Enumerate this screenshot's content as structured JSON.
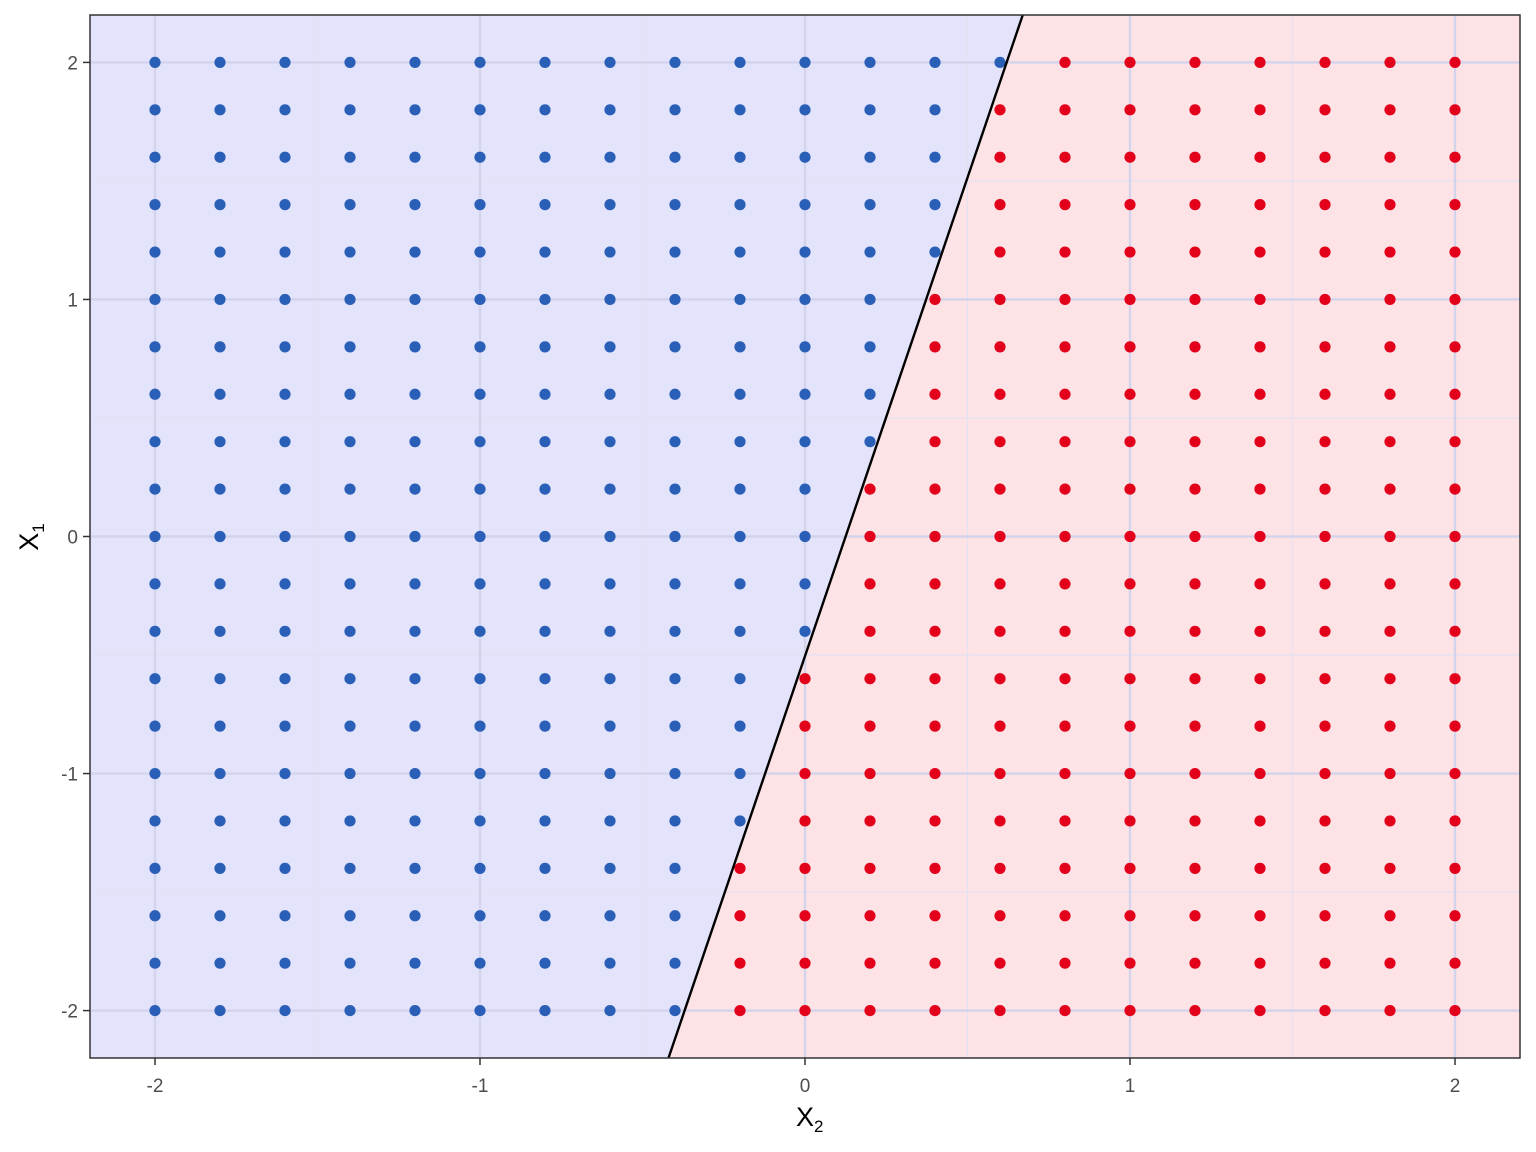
{
  "chart_data": {
    "type": "scatter",
    "title": "",
    "xlabel": "X",
    "xlabel_subscript": "2",
    "ylabel": "X",
    "ylabel_subscript": "1",
    "xlim": [
      -2.2,
      2.2
    ],
    "ylim": [
      -2.2,
      2.2
    ],
    "x_ticks": [
      -2,
      -1,
      0,
      1,
      2
    ],
    "y_ticks": [
      -2,
      -1,
      0,
      1,
      2
    ],
    "x_tick_labels": [
      "-2",
      "-1",
      "0",
      "1",
      "2"
    ],
    "y_tick_labels": [
      "-2",
      "-1",
      "0",
      "1",
      "2"
    ],
    "grid": true,
    "legend": "none",
    "grid_points": {
      "x_values": [
        -2,
        -1.8,
        -1.6,
        -1.4,
        -1.2,
        -1,
        -0.8,
        -0.6,
        -0.4,
        -0.2,
        0,
        0.2,
        0.4,
        0.6,
        0.8,
        1,
        1.2,
        1.4,
        1.6,
        1.8,
        2
      ],
      "y_values": [
        -2,
        -1.8,
        -1.6,
        -1.4,
        -1.2,
        -1,
        -0.8,
        -0.6,
        -0.4,
        -0.2,
        0,
        0.2,
        0.4,
        0.6,
        0.8,
        1,
        1.2,
        1.4,
        1.6,
        1.8,
        2
      ]
    },
    "decision_boundary": {
      "x1": [
        -2.2,
        2.2
      ],
      "x2": [
        -0.42,
        0.67
      ]
    },
    "classes": {
      "left": {
        "point_color": "#2a5fb8",
        "region_color": "#e3e3fc"
      },
      "right": {
        "point_color": "#e3001b",
        "region_color": "#fde3e5"
      }
    },
    "boundary_color": "#000000",
    "panel_border_color": "#333333",
    "grid_major_color": "#d3d3ec",
    "grid_minor_color": "#e2e2f3"
  }
}
